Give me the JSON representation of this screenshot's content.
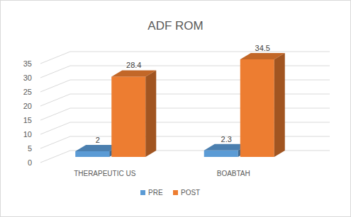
{
  "chart_data": {
    "type": "bar",
    "title": "ADF ROM",
    "categories": [
      "THERAPEUTIC US",
      "BOABTAH"
    ],
    "series": [
      {
        "name": "PRE",
        "color": "#5b9bd5",
        "values": [
          2,
          2.3
        ]
      },
      {
        "name": "POST",
        "color": "#ed7d31",
        "values": [
          28.4,
          34.5
        ]
      }
    ],
    "ylim": [
      0,
      35
    ],
    "yticks": [
      0,
      5,
      10,
      15,
      20,
      25,
      30,
      35
    ],
    "grid": true,
    "legend": "bottom",
    "data_labels": true
  }
}
